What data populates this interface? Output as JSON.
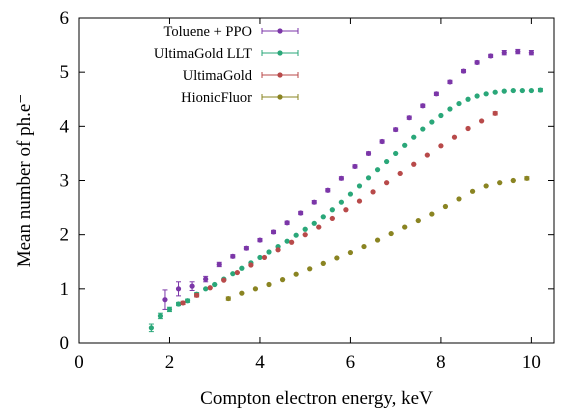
{
  "chart_data": {
    "type": "scatter",
    "xlabel": "Compton electron energy, keV",
    "ylabel": "Mean number of ph.e⁻",
    "xlim": [
      0,
      10.5
    ],
    "ylim": [
      0,
      6
    ],
    "xticks": [
      "0",
      "2",
      "4",
      "6",
      "8",
      "10"
    ],
    "yticks": [
      "0",
      "1",
      "2",
      "3",
      "4",
      "5",
      "6"
    ],
    "grid": false,
    "legend_position": "top-left",
    "series": [
      {
        "name": "Toluene + PPO",
        "color": "#7b36a8",
        "x": [
          1.9,
          2.2,
          2.5,
          2.8,
          3.1,
          3.4,
          3.7,
          4.0,
          4.3,
          4.6,
          4.9,
          5.2,
          5.5,
          5.8,
          6.1,
          6.4,
          6.7,
          7.0,
          7.3,
          7.6,
          7.9,
          8.2,
          8.5,
          8.8,
          9.1,
          9.4,
          9.7,
          10.0
        ],
        "y": [
          0.8,
          1.0,
          1.05,
          1.18,
          1.45,
          1.6,
          1.75,
          1.9,
          2.05,
          2.22,
          2.4,
          2.6,
          2.82,
          3.04,
          3.26,
          3.5,
          3.72,
          3.94,
          4.16,
          4.38,
          4.6,
          4.82,
          5.02,
          5.18,
          5.3,
          5.36,
          5.38,
          5.36
        ],
        "err": [
          0.18,
          0.13,
          0.08,
          0.05,
          0.04,
          0.03,
          0.03,
          0.03,
          0.03,
          0.03,
          0.03,
          0.03,
          0.03,
          0.03,
          0.03,
          0.03,
          0.03,
          0.03,
          0.03,
          0.03,
          0.03,
          0.03,
          0.03,
          0.03,
          0.03,
          0.04,
          0.04,
          0.04
        ]
      },
      {
        "name": "UltimaGold LLT",
        "color": "#2aa779",
        "x": [
          1.6,
          1.8,
          2.0,
          2.2,
          2.4,
          2.6,
          2.8,
          3.0,
          3.2,
          3.4,
          3.6,
          3.8,
          4.0,
          4.2,
          4.4,
          4.6,
          4.8,
          5.0,
          5.2,
          5.4,
          5.6,
          5.8,
          6.0,
          6.2,
          6.4,
          6.6,
          6.8,
          7.0,
          7.2,
          7.4,
          7.6,
          7.8,
          8.0,
          8.2,
          8.4,
          8.6,
          8.8,
          9.0,
          9.2,
          9.4,
          9.6,
          9.8,
          10.0,
          10.2
        ],
        "y": [
          0.28,
          0.5,
          0.62,
          0.72,
          0.78,
          0.9,
          1.0,
          1.08,
          1.18,
          1.28,
          1.38,
          1.48,
          1.58,
          1.68,
          1.78,
          1.88,
          1.99,
          2.1,
          2.21,
          2.33,
          2.46,
          2.6,
          2.75,
          2.9,
          3.05,
          3.2,
          3.35,
          3.5,
          3.65,
          3.8,
          3.95,
          4.08,
          4.2,
          4.32,
          4.42,
          4.5,
          4.56,
          4.6,
          4.63,
          4.65,
          4.66,
          4.66,
          4.66,
          4.67
        ],
        "err": [
          0.07,
          0.05,
          0.04,
          0.03,
          0.03,
          0.03,
          0.02,
          0.02,
          0.02,
          0.02,
          0.02,
          0.02,
          0.02,
          0.02,
          0.02,
          0.02,
          0.02,
          0.02,
          0.02,
          0.02,
          0.02,
          0.02,
          0.02,
          0.02,
          0.02,
          0.02,
          0.02,
          0.02,
          0.02,
          0.02,
          0.02,
          0.02,
          0.02,
          0.02,
          0.02,
          0.02,
          0.02,
          0.02,
          0.02,
          0.02,
          0.02,
          0.02,
          0.02,
          0.03
        ]
      },
      {
        "name": "UltimaGold",
        "color": "#b84a4a",
        "x": [
          2.3,
          2.6,
          2.9,
          3.2,
          3.5,
          3.8,
          4.1,
          4.4,
          4.7,
          5.0,
          5.3,
          5.6,
          5.9,
          6.2,
          6.5,
          6.8,
          7.1,
          7.4,
          7.7,
          8.0,
          8.3,
          8.6,
          8.9,
          9.2
        ],
        "y": [
          0.74,
          0.88,
          1.02,
          1.16,
          1.3,
          1.44,
          1.58,
          1.72,
          1.86,
          2.0,
          2.14,
          2.3,
          2.46,
          2.62,
          2.79,
          2.96,
          3.13,
          3.3,
          3.47,
          3.64,
          3.8,
          3.96,
          4.1,
          4.24
        ],
        "err": [
          0.03,
          0.03,
          0.02,
          0.02,
          0.02,
          0.02,
          0.02,
          0.02,
          0.02,
          0.02,
          0.02,
          0.02,
          0.02,
          0.02,
          0.02,
          0.02,
          0.02,
          0.02,
          0.02,
          0.02,
          0.02,
          0.02,
          0.02,
          0.03
        ]
      },
      {
        "name": "HionicFluor",
        "color": "#8a8422",
        "x": [
          3.3,
          3.6,
          3.9,
          4.2,
          4.5,
          4.8,
          5.1,
          5.4,
          5.7,
          6.0,
          6.3,
          6.6,
          6.9,
          7.2,
          7.5,
          7.8,
          8.1,
          8.4,
          8.7,
          9.0,
          9.3,
          9.6,
          9.9
        ],
        "y": [
          0.82,
          0.92,
          1.0,
          1.08,
          1.17,
          1.27,
          1.37,
          1.47,
          1.57,
          1.67,
          1.78,
          1.9,
          2.02,
          2.14,
          2.26,
          2.38,
          2.52,
          2.66,
          2.8,
          2.9,
          2.96,
          3.0,
          3.04
        ],
        "err": [
          0.03,
          0.02,
          0.02,
          0.02,
          0.02,
          0.02,
          0.02,
          0.02,
          0.02,
          0.02,
          0.02,
          0.02,
          0.02,
          0.02,
          0.02,
          0.02,
          0.02,
          0.02,
          0.02,
          0.02,
          0.02,
          0.02,
          0.03
        ]
      }
    ]
  }
}
